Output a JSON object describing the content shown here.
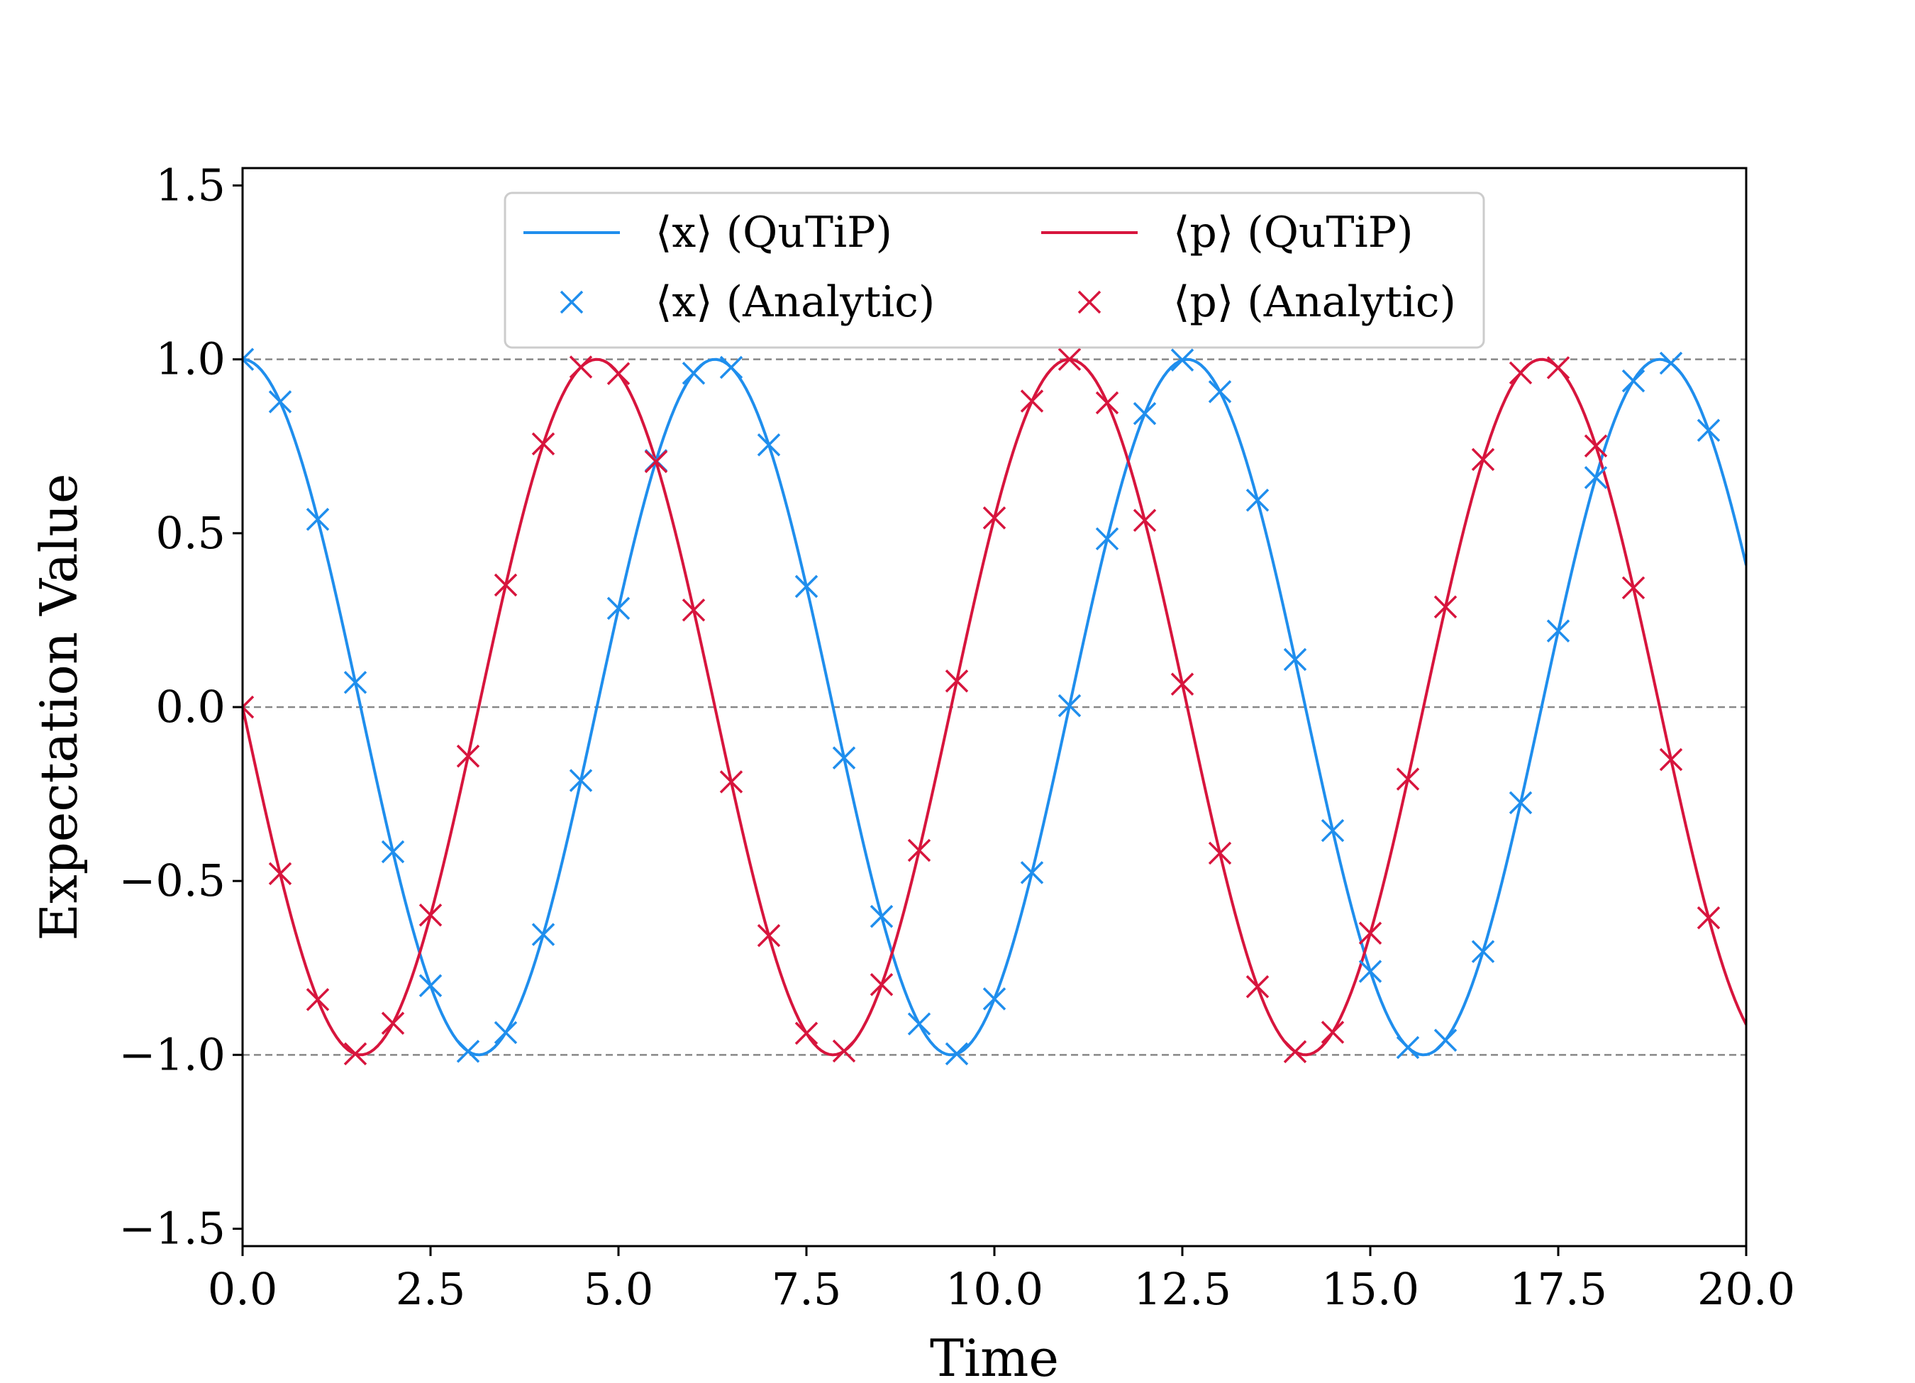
{
  "chart_data": {
    "type": "line",
    "xlabel": "Time",
    "ylabel": "Expectation Value",
    "xlim": [
      0,
      20
    ],
    "ylim": [
      -1.55,
      1.55
    ],
    "xticks": [
      "0.0",
      "2.5",
      "5.0",
      "7.5",
      "10.0",
      "12.5",
      "15.0",
      "17.5",
      "20.0"
    ],
    "yticks": [
      "−1.5",
      "−1.0",
      "−0.5",
      "0.0",
      "0.5",
      "1.0",
      "1.5"
    ],
    "reference_lines": [
      -1.0,
      0.0,
      1.0
    ],
    "legend_position": "upper center",
    "grid": false,
    "series": [
      {
        "name": "⟨x⟩ (QuTiP)",
        "kind": "line",
        "color": "#1f8eed",
        "curve": "cos",
        "x_range": [
          0,
          20
        ],
        "samples": 401
      },
      {
        "name": "⟨p⟩ (QuTiP)",
        "kind": "line",
        "color": "#d7153d",
        "curve": "-sin",
        "x_range": [
          0,
          20
        ],
        "samples": 401
      },
      {
        "name": "⟨x⟩ (Analytic)",
        "kind": "markers",
        "marker": "x",
        "color": "#1f8eed",
        "x": [
          0.0,
          0.5,
          1.0,
          1.5,
          2.0,
          2.5,
          3.0,
          3.5,
          4.0,
          4.5,
          5.0,
          5.5,
          6.0,
          6.5,
          7.0,
          7.5,
          8.0,
          8.5,
          9.0,
          9.5,
          10.0,
          10.5,
          11.0,
          11.5,
          12.0,
          12.5,
          13.0,
          13.5,
          14.0,
          14.5,
          15.0,
          15.5,
          16.0,
          16.5,
          17.0,
          17.5,
          18.0,
          18.5,
          19.0,
          19.5
        ],
        "y": [
          1.0,
          0.878,
          0.54,
          0.071,
          -0.416,
          -0.801,
          -0.99,
          -0.936,
          -0.654,
          -0.211,
          0.284,
          0.709,
          0.96,
          0.977,
          0.754,
          0.347,
          -0.146,
          -0.602,
          -0.911,
          -0.997,
          -0.839,
          -0.476,
          0.004,
          0.484,
          0.844,
          0.998,
          0.907,
          0.595,
          0.137,
          -0.355,
          -0.76,
          -0.979,
          -0.958,
          -0.703,
          -0.275,
          0.219,
          0.66,
          0.938,
          0.989,
          0.796
        ]
      },
      {
        "name": "⟨p⟩ (Analytic)",
        "kind": "markers",
        "marker": "x",
        "color": "#d7153d",
        "x": [
          0.0,
          0.5,
          1.0,
          1.5,
          2.0,
          2.5,
          3.0,
          3.5,
          4.0,
          4.5,
          5.0,
          5.5,
          6.0,
          6.5,
          7.0,
          7.5,
          8.0,
          8.5,
          9.0,
          9.5,
          10.0,
          10.5,
          11.0,
          11.5,
          12.0,
          12.5,
          13.0,
          13.5,
          14.0,
          14.5,
          15.0,
          15.5,
          16.0,
          16.5,
          17.0,
          17.5,
          18.0,
          18.5,
          19.0,
          19.5
        ],
        "y": [
          0.0,
          -0.479,
          -0.841,
          -0.997,
          -0.909,
          -0.598,
          -0.141,
          0.351,
          0.757,
          0.978,
          0.959,
          0.706,
          0.279,
          -0.215,
          -0.657,
          -0.938,
          -0.989,
          -0.798,
          -0.412,
          0.075,
          0.544,
          0.88,
          1.0,
          0.875,
          0.537,
          0.066,
          -0.42,
          -0.804,
          -0.991,
          -0.935,
          -0.65,
          -0.207,
          0.288,
          0.712,
          0.961,
          0.976,
          0.751,
          0.343,
          -0.151,
          -0.606
        ]
      }
    ]
  },
  "legend": {
    "items": [
      {
        "label": "⟨x⟩ (QuTiP)",
        "kind": "line",
        "color": "#1f8eed"
      },
      {
        "label": "⟨p⟩ (QuTiP)",
        "kind": "line",
        "color": "#d7153d"
      },
      {
        "label": "⟨x⟩ (Analytic)",
        "kind": "marker",
        "color": "#1f8eed"
      },
      {
        "label": "⟨p⟩ (Analytic)",
        "kind": "marker",
        "color": "#d7153d"
      }
    ]
  },
  "colors": {
    "reference_line": "#888888",
    "axes": "#000000",
    "legend_border": "#cccccc"
  }
}
